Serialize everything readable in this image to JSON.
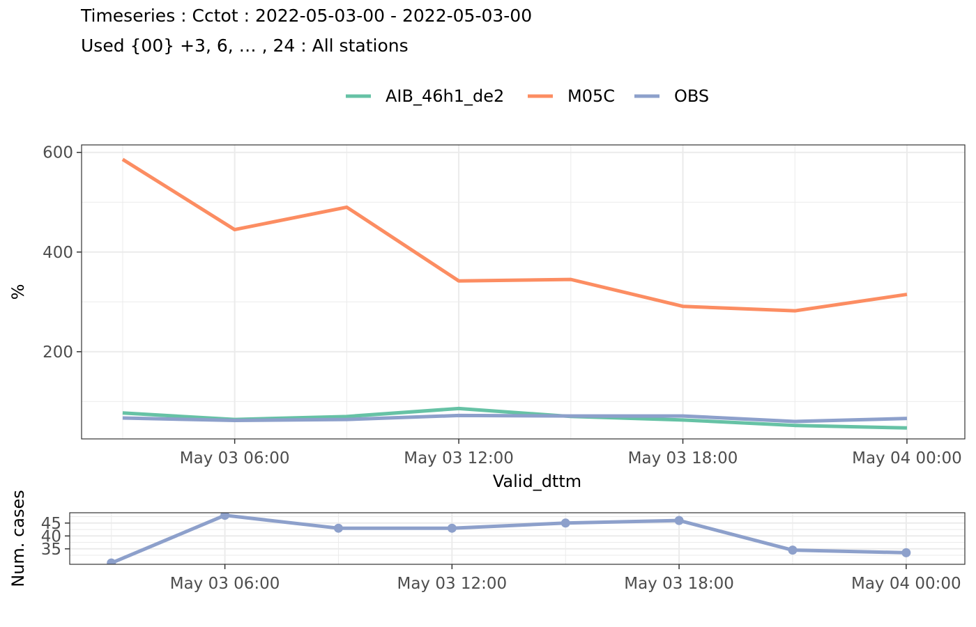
{
  "header": {
    "title": "Timeseries : Cctot : 2022-05-03-00 - 2022-05-03-00",
    "subtitle": "Used {00} +3, 6, … , 24 : All stations"
  },
  "chart_data": [
    {
      "type": "line",
      "xlabel": "Valid_dttm",
      "ylabel": "%",
      "x": [
        "2022-05-03 03:00",
        "2022-05-03 06:00",
        "2022-05-03 09:00",
        "2022-05-03 12:00",
        "2022-05-03 15:00",
        "2022-05-03 18:00",
        "2022-05-03 21:00",
        "2022-05-04 00:00"
      ],
      "x_tick_labels": [
        "May 03 06:00",
        "May 03 12:00",
        "May 03 18:00",
        "May 04 00:00"
      ],
      "y_tick_labels": [
        "200",
        "400",
        "600"
      ],
      "ylim": [
        25,
        615
      ],
      "grid": true,
      "legend_position": "top",
      "series": [
        {
          "name": "AIB_46h1_de2",
          "color": "#66C2A5",
          "values": [
            77,
            64,
            70,
            86,
            70,
            63,
            52,
            47
          ]
        },
        {
          "name": "M05C",
          "color": "#FC8D62",
          "values": [
            586,
            445,
            490,
            342,
            345,
            291,
            282,
            315
          ]
        },
        {
          "name": "OBS",
          "color": "#8DA0CB",
          "values": [
            67,
            62,
            64,
            72,
            71,
            71,
            60,
            66
          ]
        }
      ]
    },
    {
      "type": "line",
      "ylabel": "Num. cases",
      "x": [
        "2022-05-03 03:00",
        "2022-05-03 06:00",
        "2022-05-03 09:00",
        "2022-05-03 12:00",
        "2022-05-03 15:00",
        "2022-05-03 18:00",
        "2022-05-03 21:00",
        "2022-05-04 00:00"
      ],
      "x_tick_labels": [
        "May 03 06:00",
        "May 03 12:00",
        "May 03 18:00",
        "May 04 00:00"
      ],
      "y_tick_labels": [
        "35",
        "40",
        "45"
      ],
      "ylim": [
        29,
        49
      ],
      "grid": true,
      "series": [
        {
          "color": "#8DA0CB",
          "values": [
            29.5,
            48,
            43,
            43,
            45,
            46,
            34.5,
            33.5
          ]
        }
      ]
    }
  ]
}
